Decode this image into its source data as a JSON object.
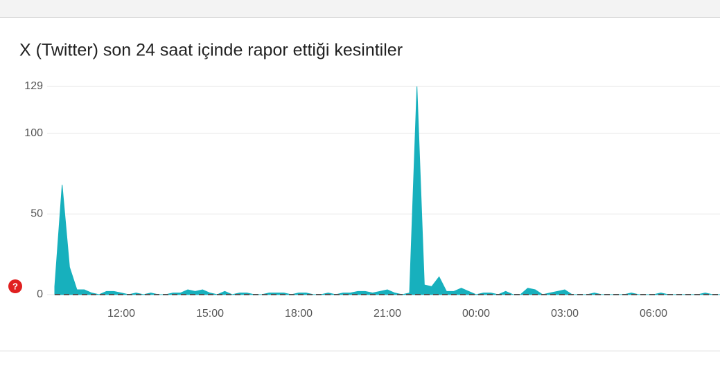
{
  "help_icon": "?",
  "chart_data": {
    "type": "area",
    "title": "X (Twitter) son 24 saat içinde rapor ettiği kesintiler",
    "categories": [
      null,
      null,
      null,
      null,
      null,
      null,
      null,
      null,
      null,
      "12:00",
      null,
      null,
      null,
      null,
      null,
      null,
      null,
      null,
      null,
      null,
      null,
      "15:00",
      null,
      null,
      null,
      null,
      null,
      null,
      null,
      null,
      null,
      null,
      null,
      "18:00",
      null,
      null,
      null,
      null,
      null,
      null,
      null,
      null,
      null,
      null,
      null,
      "21:00",
      null,
      null,
      null,
      null,
      null,
      null,
      null,
      null,
      null,
      null,
      null,
      "00:00",
      null,
      null,
      null,
      null,
      null,
      null,
      null,
      null,
      null,
      null,
      null,
      "03:00",
      null,
      null,
      null,
      null,
      null,
      null,
      null,
      null,
      null,
      null,
      null,
      "06:00",
      null,
      null,
      null,
      null,
      null,
      null,
      null,
      null,
      null
    ],
    "values": [
      5,
      68,
      17,
      3,
      3,
      1,
      0,
      2,
      2,
      1,
      0,
      1,
      0,
      1,
      0,
      0,
      1,
      1,
      3,
      2,
      3,
      1,
      0,
      2,
      0,
      1,
      1,
      0,
      0,
      1,
      1,
      1,
      0,
      1,
      1,
      0,
      0,
      1,
      0,
      1,
      1,
      2,
      2,
      1,
      2,
      3,
      1,
      0,
      1,
      129,
      6,
      5,
      11,
      2,
      2,
      4,
      2,
      0,
      1,
      1,
      0,
      2,
      0,
      0,
      4,
      3,
      0,
      1,
      2,
      3,
      0,
      0,
      0,
      1,
      0,
      0,
      0,
      0,
      1,
      0,
      0,
      0,
      1,
      0,
      0,
      0,
      0,
      0,
      1,
      0,
      0
    ],
    "color": "#17b0bd",
    "ylim": [
      0,
      129
    ],
    "yticks": [
      0,
      50,
      100,
      129
    ],
    "grid": true
  }
}
